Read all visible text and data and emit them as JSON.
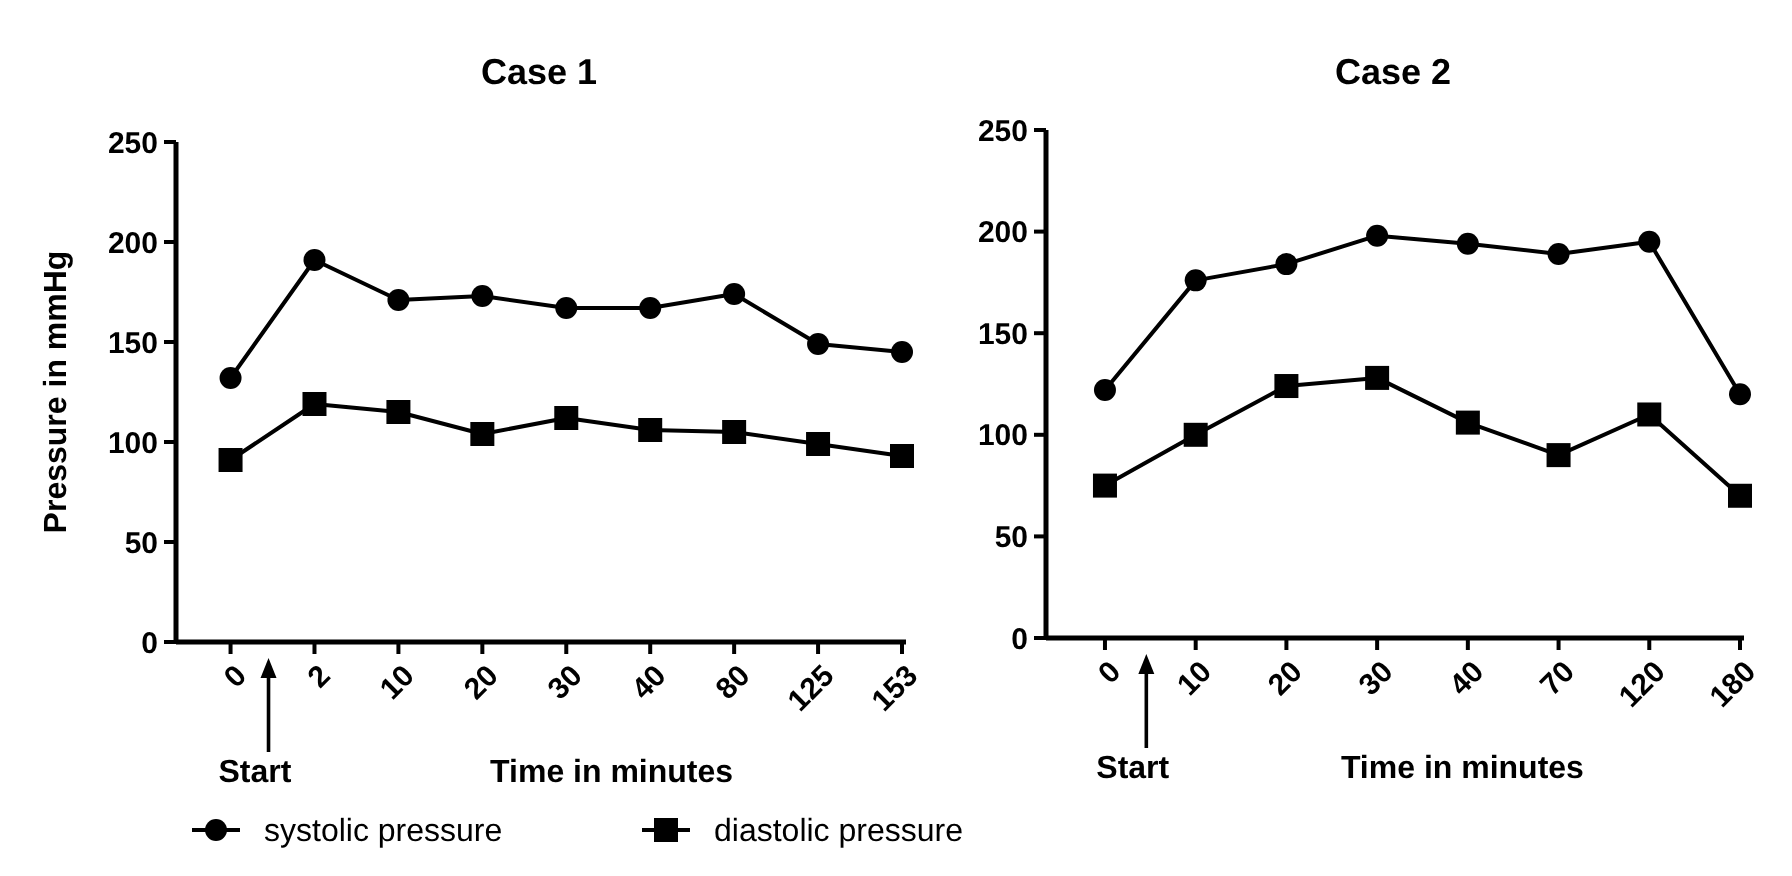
{
  "chart_data": [
    {
      "type": "line",
      "title": "Case 1",
      "xlabel": "Time in minutes",
      "ylabel": "Pressure in mmHg",
      "categories": [
        "0",
        "2",
        "10",
        "20",
        "30",
        "40",
        "80",
        "125",
        "153"
      ],
      "ylim": [
        0,
        250
      ],
      "yticks": [
        0,
        50,
        100,
        150,
        200,
        250
      ],
      "annotations": [
        "Start"
      ],
      "legend": "bottom",
      "series": [
        {
          "name": "systolic pressure",
          "color": "#000000",
          "marker": "circle",
          "values": [
            132,
            191,
            171,
            173,
            167,
            167,
            174,
            149,
            145
          ]
        },
        {
          "name": "diastolic pressure",
          "color": "#000000",
          "marker": "square",
          "values": [
            91,
            119,
            115,
            104,
            112,
            106,
            105,
            99,
            93
          ]
        }
      ]
    },
    {
      "type": "line",
      "title": "Case 2",
      "xlabel": "Time in minutes",
      "categories": [
        "0",
        "10",
        "20",
        "30",
        "40",
        "70",
        "120",
        "180"
      ],
      "ylim": [
        0,
        250
      ],
      "yticks": [
        0,
        50,
        100,
        150,
        200,
        250
      ],
      "annotations": [
        "Start"
      ],
      "series": [
        {
          "color": "#000000",
          "marker": "circle",
          "values": [
            122,
            176,
            184,
            198,
            194,
            189,
            195,
            120
          ]
        },
        {
          "color": "#000000",
          "marker": "square",
          "values": [
            75,
            100,
            124,
            128,
            106,
            90,
            110,
            70
          ]
        }
      ]
    }
  ]
}
